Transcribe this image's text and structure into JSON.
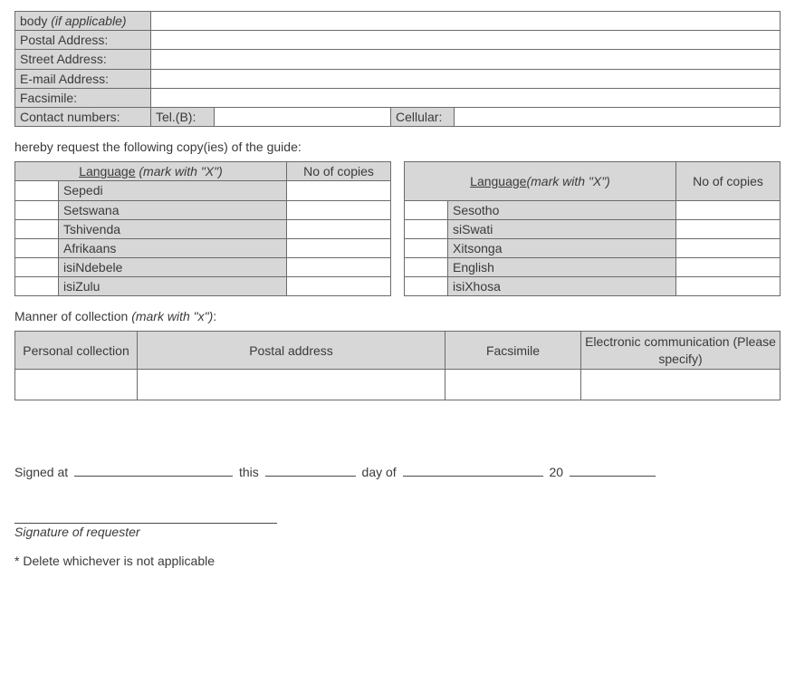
{
  "colors": {
    "shade": "#d7d7d7",
    "border": "#6b6b6b",
    "text": "#3a3a3a",
    "background": "#ffffff"
  },
  "fontsize_pt": 11,
  "contact": {
    "body_label": "body ",
    "body_italic": "(if applicable)",
    "postal_label": "Postal Address:",
    "street_label": "Street Address:",
    "email_label": "E-mail Address:",
    "fax_label": "Facsimile:",
    "numbers_label": "Contact numbers:",
    "tel_label": "Tel.(B):",
    "cell_label": "Cellular:",
    "body_val": "",
    "postal_val": "",
    "street_val": "",
    "email_val": "",
    "fax_val": "",
    "tel_val": "",
    "cell_val": ""
  },
  "request_line": "hereby request the following copy(ies) of the guide:",
  "lang_table": {
    "header_lang_prefix": "Language",
    "header_lang_italic": " (mark with \"X\")",
    "header_lang2_prefix": "Language",
    "header_lang2_italic": "(mark with \"X\")",
    "header_copies": "No of copies",
    "left": [
      {
        "mark": "",
        "name": "Sepedi",
        "copies": ""
      },
      {
        "mark": "",
        "name": "Setswana",
        "copies": ""
      },
      {
        "mark": "",
        "name": "Tshivenda",
        "copies": ""
      },
      {
        "mark": "",
        "name": "Afrikaans",
        "copies": ""
      },
      {
        "mark": "",
        "name": "isiNdebele",
        "copies": ""
      },
      {
        "mark": "",
        "name": "isiZulu",
        "copies": ""
      }
    ],
    "right": [
      {
        "mark": "",
        "name": "Sesotho",
        "copies": ""
      },
      {
        "mark": "",
        "name": "siSwati",
        "copies": ""
      },
      {
        "mark": "",
        "name": "Xitsonga",
        "copies": ""
      },
      {
        "mark": "",
        "name": "English",
        "copies": ""
      },
      {
        "mark": "",
        "name": "isiXhosa",
        "copies": ""
      }
    ]
  },
  "manner": {
    "heading_prefix": "Manner of collection ",
    "heading_italic": "(mark with \"x\")",
    "heading_suffix": ":",
    "col1": "Personal collection",
    "col2": "Postal address",
    "col3": "Facsimile",
    "col4": "Electronic communication (Please specify)",
    "v1": "",
    "v2": "",
    "v3": "",
    "v4": ""
  },
  "sign": {
    "signed_at": "Signed at",
    "this": "this",
    "day_of": "day of",
    "twenty": "20",
    "sig_caption": "Signature of requester",
    "footnote": "* Delete whichever is not applicable"
  }
}
